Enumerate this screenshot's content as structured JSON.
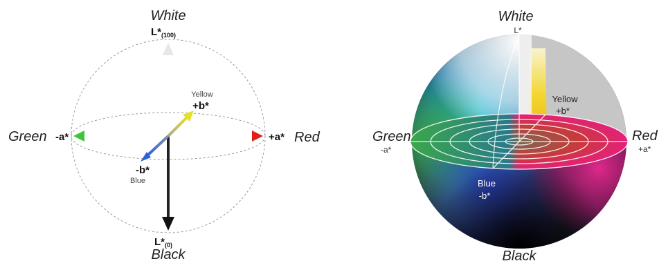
{
  "left": {
    "white": "White",
    "l100_main": "L*",
    "l100_sub": "(100)",
    "yellow": "Yellow",
    "plus_b": "+b*",
    "green": "Green",
    "minus_a": "-a*",
    "plus_a": "+a*",
    "red": "Red",
    "minus_b": "-b*",
    "blue": "Blue",
    "l0_main": "L*",
    "l0_sub": "(0)",
    "black": "Black"
  },
  "right": {
    "white": "White",
    "l": "L*",
    "yellow": "Yellow",
    "plus_b": "+b*",
    "green": "Green",
    "minus_a": "-a*",
    "red": "Red",
    "plus_a": "+a*",
    "blue": "Blue",
    "minus_b": "-b*",
    "black": "Black"
  },
  "colors": {
    "green": "#3cc43c",
    "red": "#e0201c",
    "yellow": "#e6e02a",
    "blue": "#2a63d8",
    "gray": "#c6c6c6"
  }
}
